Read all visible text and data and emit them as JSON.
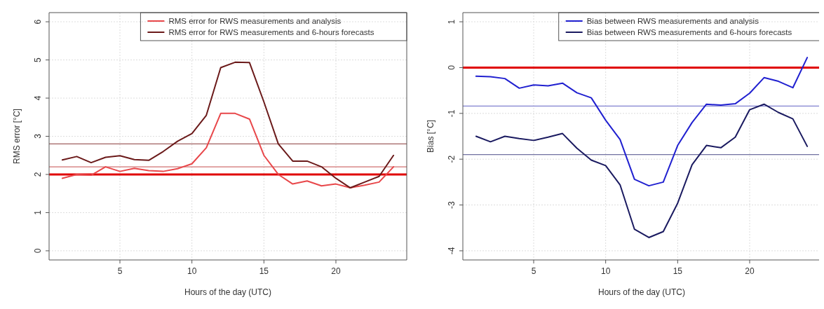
{
  "chart_data": [
    {
      "type": "line",
      "xlabel": "Hours of the day (UTC)",
      "ylabel": "RMS error [°C]",
      "x": [
        1,
        2,
        3,
        4,
        5,
        6,
        7,
        8,
        9,
        10,
        11,
        12,
        13,
        14,
        15,
        16,
        17,
        18,
        19,
        20,
        21,
        22,
        23,
        24
      ],
      "xlim": [
        0.08,
        24.92
      ],
      "xticks": [
        5,
        10,
        15,
        20
      ],
      "ylim": [
        -0.24,
        6.24
      ],
      "yticks": [
        0,
        1,
        2,
        3,
        4,
        5,
        6
      ],
      "grid": true,
      "legend": "top right",
      "line_style": "solid",
      "series": [
        {
          "name": "RMS error for RWS measurements and analysis",
          "color": "#e8474a",
          "values": [
            1.9,
            2.0,
            1.98,
            2.2,
            2.08,
            2.16,
            2.1,
            2.08,
            2.15,
            2.28,
            2.7,
            3.6,
            3.6,
            3.45,
            2.5,
            2.0,
            1.75,
            1.83,
            1.7,
            1.75,
            1.65,
            1.72,
            1.8,
            2.2
          ]
        },
        {
          "name": "RMS error for RWS measurements and 6-hours forecasts",
          "color": "#6b1a1a",
          "values": [
            2.38,
            2.47,
            2.31,
            2.45,
            2.49,
            2.39,
            2.37,
            2.6,
            2.87,
            3.07,
            3.55,
            4.8,
            4.94,
            4.93,
            3.9,
            2.8,
            2.35,
            2.35,
            2.2,
            1.9,
            1.65,
            1.8,
            1.95,
            2.5
          ]
        }
      ],
      "ref_lines": [
        {
          "axis": "y",
          "value": 2,
          "color": "#e00000"
        },
        {
          "axis": "y",
          "value": 2.8,
          "color": "#a06060"
        },
        {
          "axis": "y",
          "value": 2.2,
          "color": "#d07070"
        }
      ]
    },
    {
      "type": "line",
      "xlabel": "Hours of the day (UTC)",
      "ylabel": "Bias [°C]",
      "x": [
        1,
        2,
        3,
        4,
        5,
        6,
        7,
        8,
        9,
        10,
        11,
        12,
        13,
        14,
        15,
        16,
        17,
        18,
        19,
        20,
        21,
        22,
        23,
        24
      ],
      "xlim": [
        0.08,
        24.92
      ],
      "xticks": [
        5,
        10,
        15,
        20
      ],
      "ylim": [
        -4.2,
        1.2
      ],
      "yticks": [
        -4,
        -3,
        -2,
        -1,
        0,
        1
      ],
      "grid": true,
      "legend": "top right",
      "line_style": "solid",
      "series": [
        {
          "name": "Bias between RWS measurements and analysis",
          "color": "#2020d0",
          "values": [
            -0.19,
            -0.2,
            -0.24,
            -0.45,
            -0.38,
            -0.4,
            -0.34,
            -0.55,
            -0.66,
            -1.15,
            -1.57,
            -2.44,
            -2.58,
            -2.5,
            -1.7,
            -1.2,
            -0.8,
            -0.82,
            -0.79,
            -0.56,
            -0.22,
            -0.3,
            -0.44,
            0.22
          ]
        },
        {
          "name": "Bias between RWS measurements and 6-hours forecasts",
          "color": "#1a1a60",
          "values": [
            -1.5,
            -1.62,
            -1.5,
            -1.55,
            -1.59,
            -1.52,
            -1.44,
            -1.76,
            -2.02,
            -2.14,
            -2.56,
            -3.53,
            -3.71,
            -3.58,
            -2.96,
            -2.12,
            -1.7,
            -1.75,
            -1.52,
            -0.92,
            -0.8,
            -0.98,
            -1.12,
            -1.72
          ]
        }
      ],
      "ref_lines": [
        {
          "axis": "y",
          "value": 0,
          "color": "#e00000"
        },
        {
          "axis": "y",
          "value": -0.84,
          "color": "#8080d0"
        },
        {
          "axis": "y",
          "value": -1.9,
          "color": "#7070a0"
        }
      ]
    }
  ]
}
